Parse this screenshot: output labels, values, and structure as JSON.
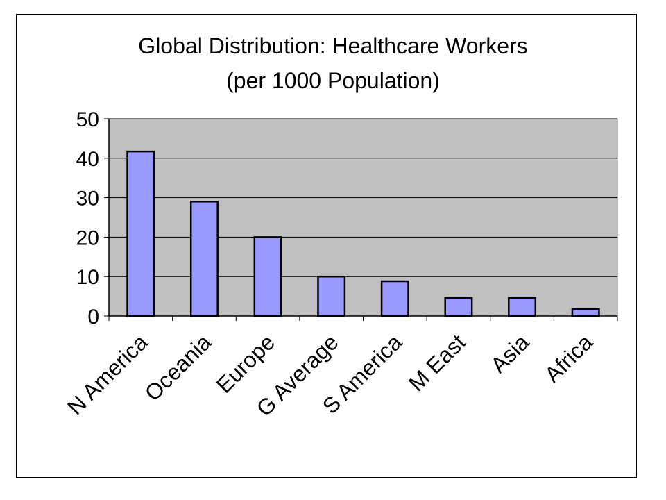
{
  "chart_data": {
    "type": "bar",
    "title": "Global Distribution: Healthcare Workers",
    "subtitle": "(per 1000 Population)",
    "xlabel": "",
    "ylabel": "",
    "categories": [
      "N America",
      "Oceania",
      "Europe",
      "G Average",
      "S America",
      "M East",
      "Asia",
      "Africa"
    ],
    "values": [
      41.7,
      29,
      20,
      10,
      8.8,
      4.6,
      4.6,
      1.8
    ],
    "ylim": [
      0,
      50
    ],
    "yticks": [
      0,
      10,
      20,
      30,
      40,
      50
    ],
    "grid": true,
    "legend": "none",
    "colors": {
      "bar_fill": "#9999FF",
      "bar_stroke": "#000000",
      "plot_background": "#C0C0C0",
      "gridline": "#000000"
    }
  }
}
